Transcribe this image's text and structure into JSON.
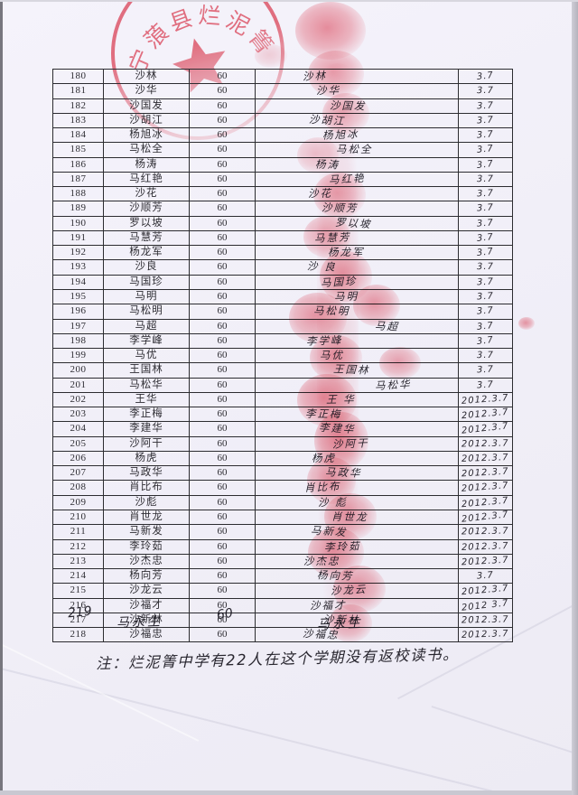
{
  "stamp": {
    "text": "宁蒗县烂泥箐",
    "color": "#e23347"
  },
  "table": {
    "rows": [
      {
        "no": "180",
        "name": "沙林",
        "amount": "60",
        "signature": "沙林",
        "date": "3.7"
      },
      {
        "no": "181",
        "name": "沙华",
        "amount": "60",
        "signature": "沙华",
        "date": "3.7"
      },
      {
        "no": "182",
        "name": "沙国发",
        "amount": "60",
        "signature": "沙国发",
        "date": "3.7"
      },
      {
        "no": "183",
        "name": "沙胡江",
        "amount": "60",
        "signature": "沙胡江",
        "date": "3.7"
      },
      {
        "no": "184",
        "name": "杨旭冰",
        "amount": "60",
        "signature": "杨旭冰",
        "date": "3.7"
      },
      {
        "no": "185",
        "name": "马松全",
        "amount": "60",
        "signature": "马松全",
        "date": "3.7"
      },
      {
        "no": "186",
        "name": "杨涛",
        "amount": "60",
        "signature": "杨涛",
        "date": "3.7"
      },
      {
        "no": "187",
        "name": "马红艳",
        "amount": "60",
        "signature": "马红艳",
        "date": "3.7"
      },
      {
        "no": "188",
        "name": "沙花",
        "amount": "60",
        "signature": "沙花",
        "date": "3.7"
      },
      {
        "no": "189",
        "name": "沙顺芳",
        "amount": "60",
        "signature": "沙顺芳",
        "date": "3.7"
      },
      {
        "no": "190",
        "name": "罗以坡",
        "amount": "60",
        "signature": "罗以坡",
        "date": "3.7"
      },
      {
        "no": "191",
        "name": "马慧芳",
        "amount": "60",
        "signature": "马慧芳",
        "date": "3.7"
      },
      {
        "no": "192",
        "name": "杨龙军",
        "amount": "60",
        "signature": "杨龙军",
        "date": "3.7"
      },
      {
        "no": "193",
        "name": "沙良",
        "amount": "60",
        "signature": "沙 良",
        "date": "3.7"
      },
      {
        "no": "194",
        "name": "马国珍",
        "amount": "60",
        "signature": "马国珍",
        "date": "3.7"
      },
      {
        "no": "195",
        "name": "马明",
        "amount": "60",
        "signature": "马明",
        "date": "3.7"
      },
      {
        "no": "196",
        "name": "马松明",
        "amount": "60",
        "signature": "马松明",
        "date": "3.7"
      },
      {
        "no": "197",
        "name": "马超",
        "amount": "60",
        "signature": "马超",
        "date": "3.7",
        "sig_right": true
      },
      {
        "no": "198",
        "name": "李学峰",
        "amount": "60",
        "signature": "李学峰",
        "date": "3.7"
      },
      {
        "no": "199",
        "name": "马优",
        "amount": "60",
        "signature": "马优",
        "date": "3.7"
      },
      {
        "no": "200",
        "name": "王国林",
        "amount": "60",
        "signature": "王国林",
        "date": "3.7"
      },
      {
        "no": "201",
        "name": "马松华",
        "amount": "60",
        "signature": "马松华",
        "date": "3.7",
        "sig_right": true
      },
      {
        "no": "202",
        "name": "王华",
        "amount": "60",
        "signature": "王 华",
        "date": "2012.3.7"
      },
      {
        "no": "203",
        "name": "李正梅",
        "amount": "60",
        "signature": "李正梅",
        "date": "2012.3.7"
      },
      {
        "no": "204",
        "name": "李建华",
        "amount": "60",
        "signature": "李建华",
        "date": "2012.3.7"
      },
      {
        "no": "205",
        "name": "沙阿干",
        "amount": "60",
        "signature": "沙阿干",
        "date": "2012.3.7"
      },
      {
        "no": "206",
        "name": "杨虎",
        "amount": "60",
        "signature": "杨虎",
        "date": "2012.3.7"
      },
      {
        "no": "207",
        "name": "马政华",
        "amount": "60",
        "signature": "马政华",
        "date": "2012.3.7"
      },
      {
        "no": "208",
        "name": "肖比布",
        "amount": "60",
        "signature": "肖比布",
        "date": "2012.3.7"
      },
      {
        "no": "209",
        "name": "沙彪",
        "amount": "60",
        "signature": "沙 彪",
        "date": "2012.3.7"
      },
      {
        "no": "210",
        "name": "肖世龙",
        "amount": "60",
        "signature": "肖世龙",
        "date": "2012.3.7"
      },
      {
        "no": "211",
        "name": "马新发",
        "amount": "60",
        "signature": "马新发",
        "date": "2012.3.7"
      },
      {
        "no": "212",
        "name": "李玲茹",
        "amount": "60",
        "signature": "李玲茹",
        "date": "2012.3.7"
      },
      {
        "no": "213",
        "name": "沙杰忠",
        "amount": "60",
        "signature": "沙杰忠",
        "date": "2012.3.7"
      },
      {
        "no": "214",
        "name": "杨向芳",
        "amount": "60",
        "signature": "杨向芳",
        "date": "3.7"
      },
      {
        "no": "215",
        "name": "沙龙云",
        "amount": "60",
        "signature": "沙龙云",
        "date": "2012.3.7"
      },
      {
        "no": "216",
        "name": "沙福才",
        "amount": "60",
        "signature": "沙福才",
        "date": "2012 3.7"
      },
      {
        "no": "217",
        "name": "沙新林",
        "amount": "60",
        "signature": "沙新林",
        "date": "2012.3.7"
      },
      {
        "no": "218",
        "name": "沙福忠",
        "amount": "60",
        "signature": "沙福忠",
        "date": "2012.3.7"
      }
    ]
  },
  "extra_row": {
    "no": "219",
    "name": "马永生",
    "amount": "60",
    "signature": "马永生"
  },
  "note": "注：烂泥箐中学有22人在这个学期没有返校读书。"
}
